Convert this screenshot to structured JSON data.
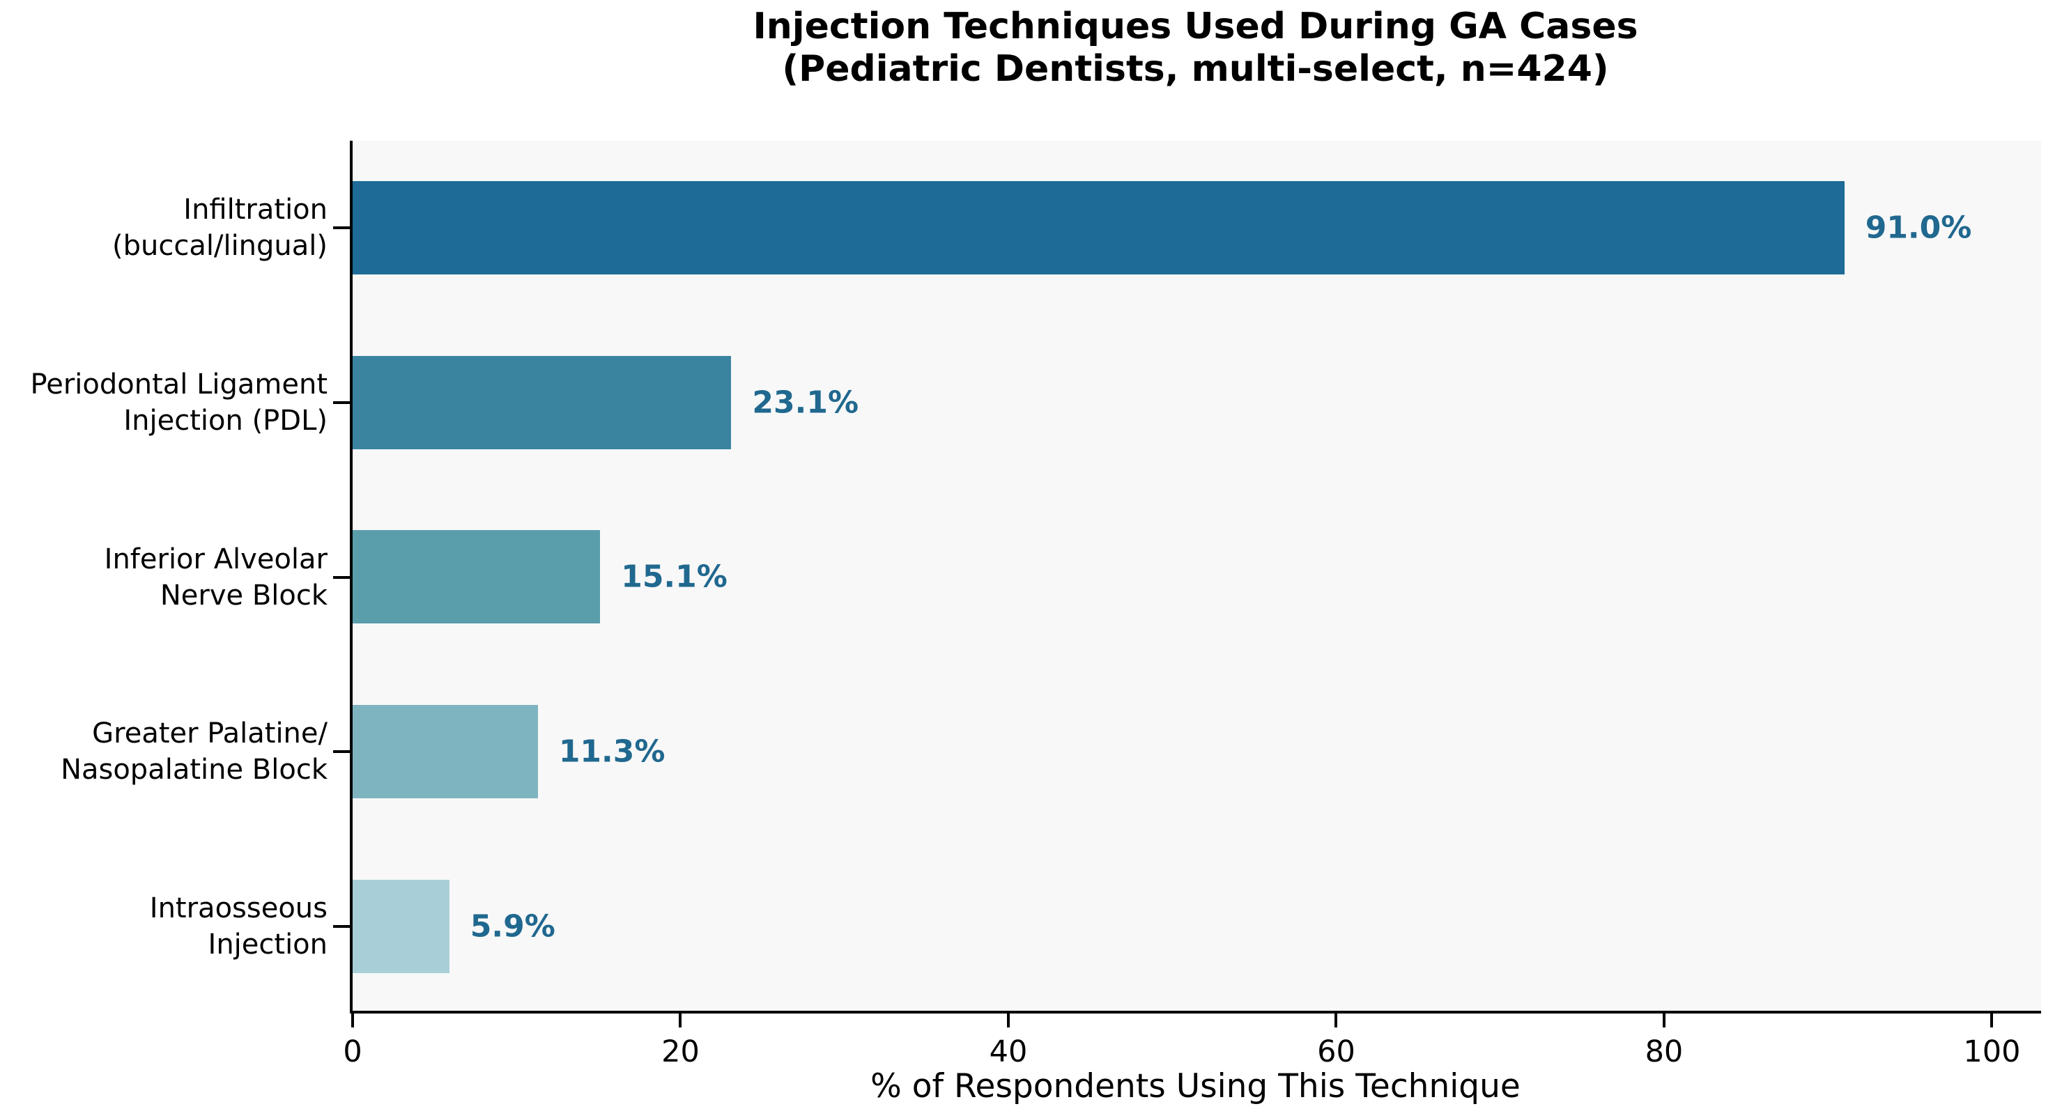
{
  "chart_data": {
    "type": "bar",
    "orientation": "horizontal",
    "title": "Injection Techniques Used During GA Cases (Pediatric Dentists, multi-select, n=424)",
    "title_lines": [
      "Injection Techniques Used During GA Cases",
      "(Pediatric Dentists, multi-select, n=424)"
    ],
    "categories": [
      "Infiltration (buccal/lingual)",
      "Periodontal Ligament Injection (PDL)",
      "Inferior Alveolar Nerve Block",
      "Greater Palatine/ Nasopalatine Block",
      "Intraosseous Injection"
    ],
    "category_label_lines": [
      "Infiltration\n(buccal/lingual)",
      "Periodontal Ligament\nInjection (PDL)",
      "Inferior Alveolar\nNerve Block",
      "Greater Palatine/\nNasopalatine Block",
      "Intraosseous\nInjection"
    ],
    "values": [
      91.0,
      23.1,
      15.1,
      11.3,
      5.9
    ],
    "value_labels": [
      "91.0%",
      "23.1%",
      "15.1%",
      "11.3%",
      "5.9%"
    ],
    "bar_colors": [
      "#1d6b96",
      "#3a84a0",
      "#5a9dab",
      "#7eb4bf",
      "#a8cfd8"
    ],
    "xlabel": "% of Respondents Using This Technique",
    "ylabel": "",
    "xlim": [
      0,
      103
    ],
    "x_ticks": [
      0,
      20,
      40,
      60,
      80,
      100
    ],
    "grid": false,
    "legend_position": "none",
    "value_label_color": "#20688f",
    "plot_background": "#f8f8f8",
    "figure_background": "#ffffff",
    "axis_color": "#000000"
  }
}
